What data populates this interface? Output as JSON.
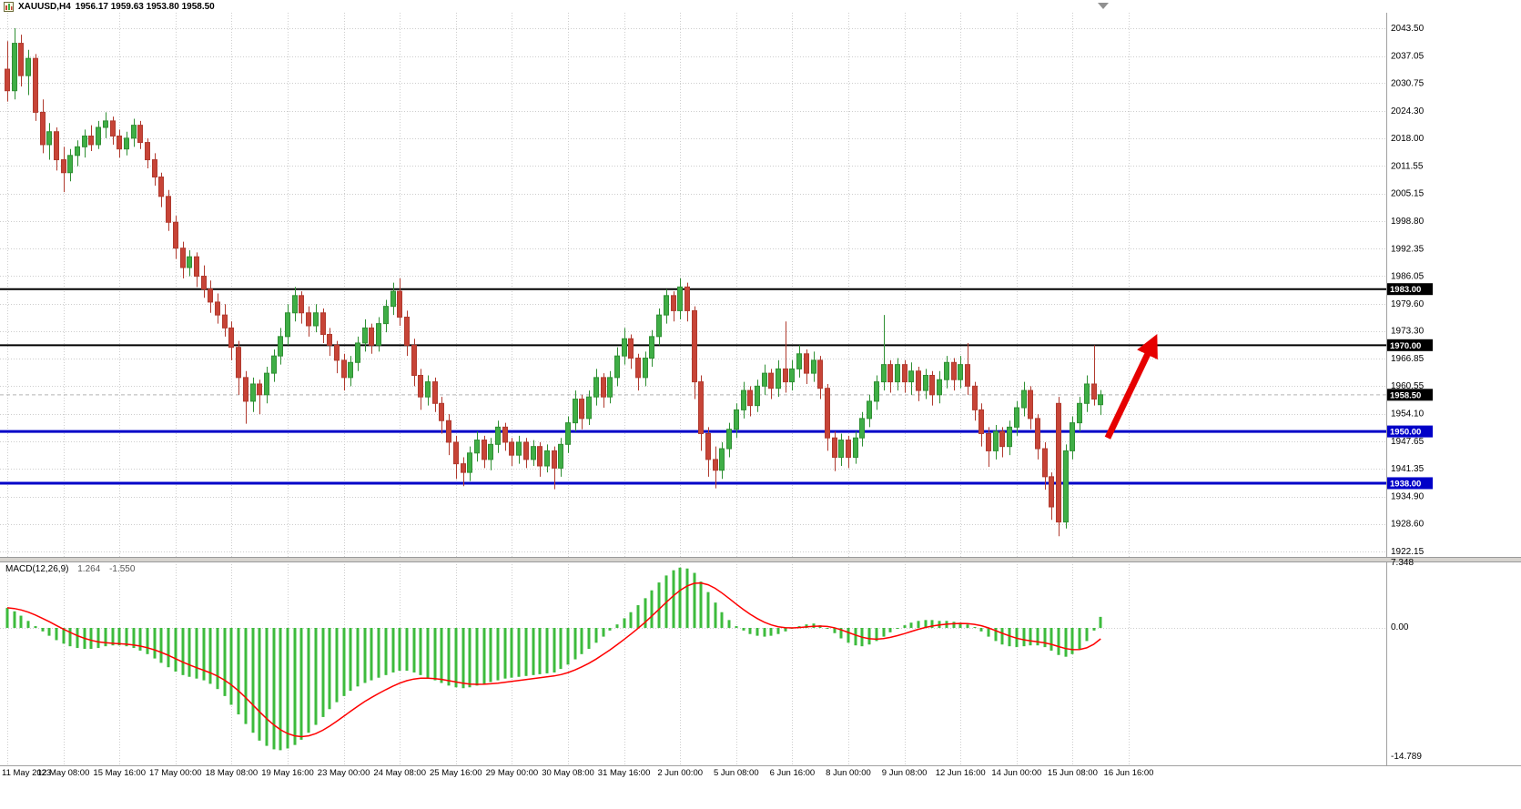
{
  "header": {
    "symbol_period": "XAUUSD,H4",
    "ohlc": "1956.17 1959.63 1953.80 1958.50"
  },
  "chart_data": {
    "type": "candlestick",
    "symbol": "XAUUSD",
    "timeframe": "H4",
    "grid": true,
    "price_axis": {
      "ticks": [
        "2043.50",
        "2037.05",
        "2030.75",
        "2024.30",
        "2018.00",
        "2011.55",
        "2005.15",
        "1998.80",
        "1992.35",
        "1986.05",
        "1979.60",
        "1973.30",
        "1966.85",
        "1960.55",
        "1954.10",
        "1947.65",
        "1941.35",
        "1934.90",
        "1928.60",
        "1922.15"
      ],
      "ylim": [
        1920.5,
        2046.5
      ]
    },
    "time_axis": {
      "labels": [
        "11 May 2023",
        "12 May 08:00",
        "15 May 16:00",
        "17 May 00:00",
        "18 May 08:00",
        "19 May 16:00",
        "23 May 00:00",
        "24 May 08:00",
        "25 May 16:00",
        "29 May 00:00",
        "30 May 08:00",
        "31 May 16:00",
        "2 Jun 00:00",
        "5 Jun 08:00",
        "6 Jun 16:00",
        "8 Jun 00:00",
        "9 Jun 08:00",
        "12 Jun 16:00",
        "14 Jun 00:00",
        "15 Jun 08:00",
        "16 Jun 16:00"
      ],
      "candles_per_gridline": 8
    },
    "candles": [
      [
        2034.0,
        2040.5,
        2026.5,
        2029.0
      ],
      [
        2029.0,
        2043.5,
        2027.0,
        2040.0
      ],
      [
        2040.0,
        2042.0,
        2030.0,
        2032.5
      ],
      [
        2032.5,
        2038.5,
        2028.0,
        2036.5
      ],
      [
        2036.5,
        2037.5,
        2022.0,
        2024.0
      ],
      [
        2024.0,
        2027.0,
        2014.5,
        2016.5
      ],
      [
        2016.5,
        2021.5,
        2013.0,
        2019.5
      ],
      [
        2019.5,
        2020.5,
        2010.5,
        2013.0
      ],
      [
        2013.0,
        2016.0,
        2005.5,
        2010.0
      ],
      [
        2010.0,
        2015.5,
        2008.0,
        2014.0
      ],
      [
        2014.0,
        2017.5,
        2011.5,
        2016.0
      ],
      [
        2016.0,
        2020.0,
        2013.5,
        2018.5
      ],
      [
        2018.5,
        2021.0,
        2015.0,
        2016.5
      ],
      [
        2016.5,
        2022.0,
        2015.5,
        2020.5
      ],
      [
        2020.5,
        2024.0,
        2018.0,
        2022.0
      ],
      [
        2022.0,
        2023.0,
        2016.5,
        2018.5
      ],
      [
        2018.5,
        2020.0,
        2013.5,
        2015.5
      ],
      [
        2015.5,
        2019.5,
        2014.0,
        2018.0
      ],
      [
        2018.0,
        2022.5,
        2016.0,
        2021.0
      ],
      [
        2021.0,
        2022.0,
        2015.5,
        2017.0
      ],
      [
        2017.0,
        2018.0,
        2011.0,
        2013.0
      ],
      [
        2013.0,
        2014.5,
        2007.0,
        2009.0
      ],
      [
        2009.0,
        2010.0,
        2002.0,
        2004.5
      ],
      [
        2004.5,
        2006.0,
        1996.5,
        1998.5
      ],
      [
        1998.5,
        2000.0,
        1990.0,
        1992.5
      ],
      [
        1992.5,
        1994.0,
        1985.5,
        1988.0
      ],
      [
        1988.0,
        1992.0,
        1986.0,
        1990.5
      ],
      [
        1990.5,
        1991.5,
        1983.5,
        1986.0
      ],
      [
        1986.0,
        1988.5,
        1981.0,
        1983.0
      ],
      [
        1983.0,
        1985.0,
        1977.5,
        1980.0
      ],
      [
        1980.0,
        1982.0,
        1975.0,
        1977.0
      ],
      [
        1977.0,
        1979.5,
        1972.0,
        1974.0
      ],
      [
        1974.0,
        1975.5,
        1966.5,
        1969.5
      ],
      [
        1969.5,
        1971.0,
        1958.5,
        1962.5
      ],
      [
        1962.5,
        1964.0,
        1951.8,
        1957.0
      ],
      [
        1957.0,
        1962.5,
        1954.5,
        1961.0
      ],
      [
        1961.0,
        1962.0,
        1954.0,
        1958.5
      ],
      [
        1958.5,
        1965.0,
        1956.5,
        1963.5
      ],
      [
        1963.5,
        1969.0,
        1961.5,
        1967.5
      ],
      [
        1967.5,
        1974.0,
        1965.5,
        1972.0
      ],
      [
        1972.0,
        1979.5,
        1970.0,
        1977.5
      ],
      [
        1977.5,
        1983.5,
        1975.5,
        1981.5
      ],
      [
        1981.5,
        1982.5,
        1975.0,
        1977.5
      ],
      [
        1977.5,
        1979.0,
        1972.0,
        1974.5
      ],
      [
        1974.5,
        1979.5,
        1973.0,
        1977.5
      ],
      [
        1977.5,
        1978.5,
        1970.5,
        1972.5
      ],
      [
        1972.5,
        1974.0,
        1967.5,
        1970.0
      ],
      [
        1970.0,
        1971.0,
        1963.5,
        1966.5
      ],
      [
        1966.5,
        1968.0,
        1959.5,
        1962.5
      ],
      [
        1962.5,
        1967.5,
        1960.5,
        1966.0
      ],
      [
        1966.0,
        1972.0,
        1964.0,
        1970.5
      ],
      [
        1970.5,
        1976.0,
        1968.5,
        1974.0
      ],
      [
        1974.0,
        1975.0,
        1968.0,
        1970.0
      ],
      [
        1970.0,
        1976.5,
        1968.5,
        1975.0
      ],
      [
        1975.0,
        1980.5,
        1973.0,
        1979.0
      ],
      [
        1979.0,
        1984.5,
        1977.0,
        1982.5
      ],
      [
        1982.5,
        1985.5,
        1974.5,
        1976.5
      ],
      [
        1976.5,
        1978.0,
        1967.5,
        1970.0
      ],
      [
        1970.0,
        1971.5,
        1960.5,
        1963.0
      ],
      [
        1963.0,
        1964.5,
        1955.0,
        1958.0
      ],
      [
        1958.0,
        1963.0,
        1956.0,
        1961.5
      ],
      [
        1961.5,
        1962.5,
        1954.5,
        1956.5
      ],
      [
        1956.5,
        1958.0,
        1949.5,
        1952.5
      ],
      [
        1952.5,
        1954.0,
        1944.5,
        1947.5
      ],
      [
        1947.5,
        1949.0,
        1939.0,
        1942.5
      ],
      [
        1942.5,
        1944.0,
        1937.3,
        1940.5
      ],
      [
        1940.5,
        1946.5,
        1938.5,
        1945.0
      ],
      [
        1945.0,
        1950.0,
        1943.0,
        1948.0
      ],
      [
        1948.0,
        1949.0,
        1941.5,
        1943.5
      ],
      [
        1943.5,
        1948.5,
        1941.0,
        1947.0
      ],
      [
        1947.0,
        1952.5,
        1945.0,
        1951.0
      ],
      [
        1951.0,
        1952.0,
        1945.5,
        1947.5
      ],
      [
        1947.5,
        1948.5,
        1942.0,
        1944.5
      ],
      [
        1944.5,
        1949.0,
        1942.5,
        1947.5
      ],
      [
        1947.5,
        1948.5,
        1941.5,
        1943.5
      ],
      [
        1943.5,
        1948.0,
        1942.0,
        1946.5
      ],
      [
        1946.5,
        1947.5,
        1939.5,
        1942.0
      ],
      [
        1942.0,
        1947.0,
        1940.5,
        1945.5
      ],
      [
        1945.5,
        1946.5,
        1936.6,
        1941.5
      ],
      [
        1941.5,
        1948.5,
        1939.5,
        1947.0
      ],
      [
        1947.0,
        1953.5,
        1945.0,
        1952.0
      ],
      [
        1952.0,
        1959.5,
        1950.0,
        1957.5
      ],
      [
        1957.5,
        1958.5,
        1950.5,
        1953.0
      ],
      [
        1953.0,
        1959.5,
        1951.5,
        1958.0
      ],
      [
        1958.0,
        1964.5,
        1956.0,
        1962.5
      ],
      [
        1962.5,
        1963.5,
        1955.5,
        1958.0
      ],
      [
        1958.0,
        1964.0,
        1956.5,
        1962.5
      ],
      [
        1962.5,
        1969.5,
        1960.5,
        1967.5
      ],
      [
        1967.5,
        1974.0,
        1965.5,
        1971.5
      ],
      [
        1971.5,
        1972.5,
        1964.5,
        1967.0
      ],
      [
        1967.0,
        1968.0,
        1959.5,
        1962.5
      ],
      [
        1962.5,
        1968.5,
        1960.5,
        1967.0
      ],
      [
        1967.0,
        1973.5,
        1965.0,
        1972.0
      ],
      [
        1972.0,
        1978.5,
        1970.0,
        1977.0
      ],
      [
        1977.0,
        1983.0,
        1975.0,
        1981.5
      ],
      [
        1981.5,
        1982.5,
        1975.5,
        1978.0
      ],
      [
        1978.0,
        1985.5,
        1976.0,
        1983.5
      ],
      [
        1983.5,
        1984.5,
        1975.5,
        1978.0
      ],
      [
        1978.0,
        1979.0,
        1957.5,
        1961.5
      ],
      [
        1961.5,
        1963.0,
        1945.5,
        1949.5
      ],
      [
        1949.5,
        1951.0,
        1939.5,
        1943.5
      ],
      [
        1943.5,
        1946.5,
        1936.8,
        1941.0
      ],
      [
        1941.0,
        1947.5,
        1939.0,
        1946.0
      ],
      [
        1946.0,
        1952.0,
        1944.0,
        1950.5
      ],
      [
        1950.5,
        1956.5,
        1948.5,
        1955.0
      ],
      [
        1955.0,
        1961.5,
        1953.0,
        1959.5
      ],
      [
        1959.5,
        1960.5,
        1953.5,
        1956.0
      ],
      [
        1956.0,
        1962.0,
        1954.5,
        1960.5
      ],
      [
        1960.5,
        1965.5,
        1958.5,
        1963.5
      ],
      [
        1963.5,
        1964.5,
        1957.5,
        1960.0
      ],
      [
        1960.0,
        1966.5,
        1958.0,
        1964.5
      ],
      [
        1964.5,
        1975.5,
        1959.0,
        1961.5
      ],
      [
        1961.5,
        1966.5,
        1959.5,
        1964.5
      ],
      [
        1964.5,
        1970.0,
        1962.5,
        1968.0
      ],
      [
        1968.0,
        1969.0,
        1961.0,
        1963.5
      ],
      [
        1963.5,
        1968.5,
        1961.5,
        1966.5
      ],
      [
        1966.5,
        1967.5,
        1957.5,
        1960.0
      ],
      [
        1960.0,
        1961.0,
        1945.5,
        1948.5
      ],
      [
        1948.5,
        1950.0,
        1940.8,
        1944.0
      ],
      [
        1944.0,
        1949.5,
        1942.0,
        1948.0
      ],
      [
        1948.0,
        1949.0,
        1941.5,
        1944.0
      ],
      [
        1944.0,
        1950.0,
        1942.5,
        1948.5
      ],
      [
        1948.5,
        1954.5,
        1946.5,
        1953.0
      ],
      [
        1953.0,
        1958.5,
        1951.0,
        1957.0
      ],
      [
        1957.0,
        1963.0,
        1955.0,
        1961.5
      ],
      [
        1961.5,
        1977.0,
        1959.5,
        1965.5
      ],
      [
        1965.5,
        1966.5,
        1959.0,
        1961.5
      ],
      [
        1961.5,
        1967.0,
        1959.5,
        1965.5
      ],
      [
        1965.5,
        1966.5,
        1959.0,
        1961.5
      ],
      [
        1961.5,
        1966.0,
        1958.5,
        1964.0
      ],
      [
        1964.0,
        1965.0,
        1957.0,
        1959.5
      ],
      [
        1959.5,
        1964.5,
        1957.5,
        1963.0
      ],
      [
        1963.0,
        1964.0,
        1956.0,
        1958.5
      ],
      [
        1958.5,
        1964.0,
        1956.5,
        1962.0
      ],
      [
        1962.0,
        1967.5,
        1960.0,
        1966.0
      ],
      [
        1966.0,
        1967.0,
        1959.5,
        1962.0
      ],
      [
        1962.0,
        1967.5,
        1960.0,
        1965.5
      ],
      [
        1965.5,
        1970.5,
        1958.5,
        1960.5
      ],
      [
        1960.5,
        1961.5,
        1952.5,
        1955.0
      ],
      [
        1955.0,
        1956.5,
        1946.5,
        1949.5
      ],
      [
        1949.5,
        1951.0,
        1941.8,
        1945.5
      ],
      [
        1945.5,
        1951.5,
        1943.5,
        1950.0
      ],
      [
        1950.0,
        1951.0,
        1944.0,
        1946.5
      ],
      [
        1946.5,
        1952.5,
        1944.5,
        1951.0
      ],
      [
        1951.0,
        1957.0,
        1949.0,
        1955.5
      ],
      [
        1955.5,
        1961.5,
        1953.5,
        1959.5
      ],
      [
        1959.5,
        1960.5,
        1950.5,
        1953.0
      ],
      [
        1953.0,
        1954.0,
        1943.5,
        1946.0
      ],
      [
        1946.0,
        1947.5,
        1936.5,
        1939.5
      ],
      [
        1939.5,
        1940.5,
        1929.5,
        1932.5
      ],
      [
        1956.5,
        1958.0,
        1925.7,
        1929.0
      ],
      [
        1929.0,
        1947.0,
        1927.5,
        1945.5
      ],
      [
        1945.5,
        1953.5,
        1943.5,
        1952.0
      ],
      [
        1952.0,
        1958.0,
        1950.0,
        1956.5
      ],
      [
        1956.5,
        1963.0,
        1954.5,
        1961.0
      ],
      [
        1961.0,
        1970.0,
        1956.0,
        1957.5
      ],
      [
        1956.2,
        1959.6,
        1953.8,
        1958.5
      ]
    ],
    "current_price": {
      "value": 1958.5,
      "label": "1958.50",
      "tag_color": "#000000"
    },
    "hlines": [
      {
        "value": 1983.0,
        "label": "1983.00",
        "color": "#000000",
        "width": 2
      },
      {
        "value": 1970.0,
        "label": "1970.00",
        "color": "#000000",
        "width": 2
      },
      {
        "value": 1950.0,
        "label": "1950.00",
        "color": "#0000c8",
        "width": 3
      },
      {
        "value": 1938.0,
        "label": "1938.00",
        "color": "#0000c8",
        "width": 3
      }
    ],
    "trend_arrow": {
      "color": "#e60000",
      "start": {
        "offset_candles": 1.0,
        "price": 1948.5
      },
      "end": {
        "offset_candles": 7.6,
        "price": 1971.0
      }
    },
    "colors": {
      "background": "#ffffff",
      "grid": "#cdcdcd",
      "up": "#3fae46",
      "up_border": "#2f8f33",
      "down": "#c74437",
      "down_border": "#b03a2e"
    },
    "macd": {
      "label": "MACD(12,26,9)",
      "value_macd": "1.264",
      "value_signal": "-1.550",
      "scale_max": "7.348",
      "scale_zero": "0.00",
      "scale_min": "-14.789",
      "histogram_color": "#3dbb3d",
      "signal_color": "#ff0000",
      "signal_ema_period": 9,
      "histogram": [
        2.3,
        1.9,
        1.4,
        0.8,
        0.2,
        -0.4,
        -0.9,
        -1.4,
        -1.8,
        -2.1,
        -2.3,
        -2.4,
        -2.4,
        -2.3,
        -2.1,
        -2.0,
        -2.0,
        -2.1,
        -2.3,
        -2.6,
        -3.0,
        -3.5,
        -4.0,
        -4.5,
        -5.0,
        -5.4,
        -5.6,
        -5.8,
        -6.0,
        -6.4,
        -7.0,
        -7.8,
        -8.8,
        -9.9,
        -11.0,
        -12.0,
        -12.9,
        -13.5,
        -13.9,
        -14.0,
        -13.8,
        -13.4,
        -12.8,
        -12.0,
        -11.1,
        -10.2,
        -9.3,
        -8.5,
        -7.8,
        -7.2,
        -6.7,
        -6.3,
        -6.0,
        -5.7,
        -5.4,
        -5.1,
        -4.9,
        -4.9,
        -5.1,
        -5.4,
        -5.7,
        -6.0,
        -6.3,
        -6.6,
        -6.8,
        -6.9,
        -6.8,
        -6.6,
        -6.4,
        -6.2,
        -6.0,
        -5.8,
        -5.7,
        -5.6,
        -5.5,
        -5.4,
        -5.3,
        -5.2,
        -5.1,
        -4.7,
        -4.2,
        -3.6,
        -3.0,
        -2.4,
        -1.7,
        -1.0,
        -0.3,
        0.4,
        1.1,
        1.8,
        2.6,
        3.4,
        4.3,
        5.2,
        6.0,
        6.6,
        6.9,
        6.8,
        6.3,
        5.3,
        4.1,
        2.9,
        1.8,
        0.9,
        0.2,
        -0.3,
        -0.7,
        -0.9,
        -1.0,
        -0.9,
        -0.7,
        -0.4,
        -0.1,
        0.2,
        0.4,
        0.5,
        0.3,
        0.0,
        -0.6,
        -1.2,
        -1.7,
        -2.0,
        -2.1,
        -1.9,
        -1.5,
        -1.0,
        -0.5,
        -0.1,
        0.3,
        0.6,
        0.8,
        0.9,
        0.9,
        0.8,
        0.8,
        0.7,
        0.6,
        0.4,
        0.1,
        -0.4,
        -1.0,
        -1.5,
        -1.9,
        -2.1,
        -2.2,
        -2.1,
        -2.0,
        -2.0,
        -2.2,
        -2.6,
        -3.1,
        -3.3,
        -3.0,
        -2.4,
        -1.5,
        -0.3,
        1.264
      ]
    }
  }
}
